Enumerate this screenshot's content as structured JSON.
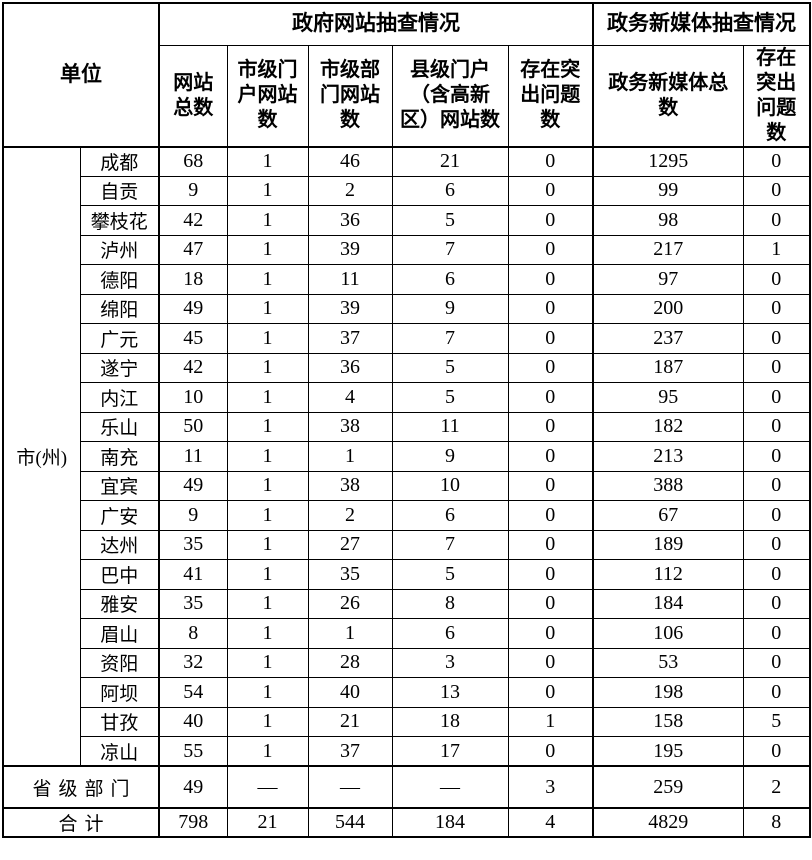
{
  "table": {
    "unit_header": "单位",
    "sections": {
      "gov_websites": "政府网站抽查情况",
      "new_media": "政务新媒体抽查情况"
    },
    "columns": {
      "site_total": "网站\n总数",
      "city_portal": "市级门\n户网站\n数",
      "city_dept": "市级部\n门网站\n数",
      "county_portal": "县级门户\n（含高新\n区）网站数",
      "site_issues": "存在突\n出问题\n数",
      "media_total": "政务新媒体总\n数",
      "media_issues": "存在\n突出\n问题\n数"
    },
    "row_group_label": "市(州)",
    "city_rows": [
      {
        "name": "成都",
        "values": [
          "68",
          "1",
          "46",
          "21",
          "0",
          "1295",
          "0"
        ]
      },
      {
        "name": "自贡",
        "values": [
          "9",
          "1",
          "2",
          "6",
          "0",
          "99",
          "0"
        ]
      },
      {
        "name": "攀枝花",
        "values": [
          "42",
          "1",
          "36",
          "5",
          "0",
          "98",
          "0"
        ]
      },
      {
        "name": "泸州",
        "values": [
          "47",
          "1",
          "39",
          "7",
          "0",
          "217",
          "1"
        ]
      },
      {
        "name": "德阳",
        "values": [
          "18",
          "1",
          "11",
          "6",
          "0",
          "97",
          "0"
        ]
      },
      {
        "name": "绵阳",
        "values": [
          "49",
          "1",
          "39",
          "9",
          "0",
          "200",
          "0"
        ]
      },
      {
        "name": "广元",
        "values": [
          "45",
          "1",
          "37",
          "7",
          "0",
          "237",
          "0"
        ]
      },
      {
        "name": "遂宁",
        "values": [
          "42",
          "1",
          "36",
          "5",
          "0",
          "187",
          "0"
        ]
      },
      {
        "name": "内江",
        "values": [
          "10",
          "1",
          "4",
          "5",
          "0",
          "95",
          "0"
        ]
      },
      {
        "name": "乐山",
        "values": [
          "50",
          "1",
          "38",
          "11",
          "0",
          "182",
          "0"
        ]
      },
      {
        "name": "南充",
        "values": [
          "11",
          "1",
          "1",
          "9",
          "0",
          "213",
          "0"
        ]
      },
      {
        "name": "宜宾",
        "values": [
          "49",
          "1",
          "38",
          "10",
          "0",
          "388",
          "0"
        ]
      },
      {
        "name": "广安",
        "values": [
          "9",
          "1",
          "2",
          "6",
          "0",
          "67",
          "0"
        ]
      },
      {
        "name": "达州",
        "values": [
          "35",
          "1",
          "27",
          "7",
          "0",
          "189",
          "0"
        ]
      },
      {
        "name": "巴中",
        "values": [
          "41",
          "1",
          "35",
          "5",
          "0",
          "112",
          "0"
        ]
      },
      {
        "name": "雅安",
        "values": [
          "35",
          "1",
          "26",
          "8",
          "0",
          "184",
          "0"
        ]
      },
      {
        "name": "眉山",
        "values": [
          "8",
          "1",
          "1",
          "6",
          "0",
          "106",
          "0"
        ]
      },
      {
        "name": "资阳",
        "values": [
          "32",
          "1",
          "28",
          "3",
          "0",
          "53",
          "0"
        ]
      },
      {
        "name": "阿坝",
        "values": [
          "54",
          "1",
          "40",
          "13",
          "0",
          "198",
          "0"
        ]
      },
      {
        "name": "甘孜",
        "values": [
          "40",
          "1",
          "21",
          "18",
          "1",
          "158",
          "5"
        ]
      },
      {
        "name": "凉山",
        "values": [
          "55",
          "1",
          "37",
          "17",
          "0",
          "195",
          "0"
        ]
      }
    ],
    "province_row": {
      "label": "省级部门",
      "values": [
        "49",
        "—",
        "—",
        "—",
        "3",
        "259",
        "2"
      ]
    },
    "total_row": {
      "label": "合计",
      "values": [
        "798",
        "21",
        "544",
        "184",
        "4",
        "4829",
        "8"
      ]
    }
  }
}
